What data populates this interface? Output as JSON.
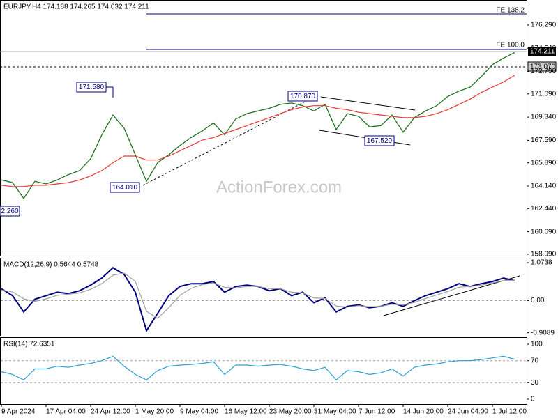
{
  "header": "EURJPY,H4  174.188 174.265 174.032 174.211",
  "watermark": "ActionForex.com",
  "annotations": [
    "171.580",
    "164.010",
    "2.260",
    "170.870",
    "167.520"
  ],
  "levels": {
    "fe_138": "FE 138.2",
    "fe_100": "FE 100.0",
    "current": "174.211",
    "support": "173.070"
  },
  "chart_data": [
    {
      "type": "line",
      "title": null,
      "categories": [
        "9 Apr 2024",
        null,
        null,
        null,
        "17 Apr 04:00",
        null,
        null,
        null,
        "24 Apr 12:00",
        null,
        null,
        null,
        "1 May 20:00",
        null,
        null,
        null,
        "9 May 04:00",
        null,
        null,
        null,
        "16 May 12:00",
        null,
        null,
        null,
        "23 May 20:00",
        null,
        null,
        null,
        "31 May 04:00",
        null,
        null,
        null,
        "7 Jun 12:00",
        null,
        null,
        null,
        "14 Jun 20:00",
        null,
        null,
        null,
        "24 Jun 04:00",
        null,
        null,
        null,
        "1 Jul 12:00",
        null,
        null
      ],
      "series": [
        {
          "name": "EURJPY",
          "color": "#1f6f1f",
          "values": [
            164.6,
            164.4,
            163.2,
            164.5,
            164.3,
            164.6,
            165.0,
            165.3,
            166.2,
            168.0,
            169.5,
            168.5,
            166.5,
            164.5,
            165.9,
            166.5,
            167.2,
            167.8,
            168.3,
            168.9,
            168.0,
            169.2,
            169.6,
            169.8,
            170.0,
            170.3,
            170.4,
            170.2,
            169.8,
            170.3,
            168.4,
            169.6,
            169.4,
            168.6,
            168.7,
            169.5,
            168.2,
            169.3,
            169.8,
            170.2,
            170.9,
            171.3,
            171.6,
            172.4,
            173.3,
            173.8,
            174.211
          ]
        },
        {
          "name": "MA",
          "color": "#e53935",
          "values": [
            164.2,
            164.1,
            164.1,
            164.2,
            164.2,
            164.3,
            164.4,
            164.6,
            164.9,
            165.3,
            165.9,
            166.4,
            166.4,
            166.1,
            166.1,
            166.4,
            166.8,
            167.2,
            167.6,
            167.8,
            168.1,
            168.4,
            168.7,
            169.0,
            169.3,
            169.6,
            169.9,
            170.1,
            170.2,
            170.2,
            170.0,
            169.9,
            169.7,
            169.6,
            169.5,
            169.4,
            169.3,
            169.3,
            169.4,
            169.6,
            169.9,
            170.3,
            170.7,
            171.2,
            171.6,
            172.0,
            172.5
          ]
        }
      ],
      "ylim": [
        158.83,
        178.125
      ],
      "yticks": [
        {
          "value": 176.29,
          "label": "176.290"
        },
        {
          "value": 174.54,
          "label": "174.540"
        },
        {
          "value": 172.79,
          "label": "172.790"
        },
        {
          "value": 171.09,
          "label": "171.090"
        },
        {
          "value": 169.34,
          "label": "169.340"
        },
        {
          "value": 167.59,
          "label": "167.590"
        },
        {
          "value": 165.89,
          "label": "165.890"
        },
        {
          "value": 164.14,
          "label": "164.140"
        },
        {
          "value": 162.44,
          "label": "162.440"
        },
        {
          "value": 160.69,
          "label": "160.690"
        },
        {
          "value": 158.99,
          "label": "158.990"
        }
      ]
    },
    {
      "type": "line",
      "title": "MACD(12,26,9) 0.5644 0.5748",
      "series": [
        {
          "name": "MACD",
          "color": "#000080",
          "values": [
            0.34,
            0.14,
            -0.32,
            0.04,
            0.14,
            0.24,
            0.2,
            0.28,
            0.44,
            0.64,
            0.93,
            0.74,
            0.24,
            -0.85,
            -0.36,
            0.14,
            0.4,
            0.48,
            0.48,
            0.54,
            0.24,
            0.4,
            0.44,
            0.4,
            0.28,
            0.34,
            0.14,
            0.24,
            -0.06,
            0.08,
            -0.32,
            -0.16,
            -0.12,
            -0.2,
            -0.16,
            -0.06,
            -0.16,
            0,
            0.14,
            0.24,
            0.34,
            0.48,
            0.4,
            0.48,
            0.54,
            0.64,
            0.5644
          ]
        },
        {
          "name": "Signal",
          "color": "#a0a0a0",
          "values": [
            0.3,
            0.25,
            0.05,
            -0.02,
            0.05,
            0.15,
            0.18,
            0.22,
            0.32,
            0.48,
            0.72,
            0.78,
            0.55,
            -0.3,
            -0.5,
            -0.2,
            0.15,
            0.35,
            0.45,
            0.5,
            0.38,
            0.36,
            0.4,
            0.4,
            0.34,
            0.34,
            0.24,
            0.22,
            0.08,
            0.06,
            -0.15,
            -0.18,
            -0.14,
            -0.17,
            -0.16,
            -0.1,
            -0.12,
            -0.05,
            0.06,
            0.16,
            0.26,
            0.38,
            0.4,
            0.44,
            0.5,
            0.57,
            0.5748
          ]
        }
      ],
      "ylim": [
        -0.994,
        1.193
      ],
      "yticks": [
        1.0738,
        {
          "value": 0,
          "label": "0.00"
        },
        -0.9089
      ],
      "reference_lines": [
        0
      ]
    },
    {
      "type": "line",
      "title": "RSI(14) 72.6351",
      "series": [
        {
          "name": "RSI",
          "color": "#2a9fd6",
          "values": [
            50,
            45,
            35,
            55,
            55,
            60,
            58,
            62,
            65,
            70,
            78,
            60,
            45,
            35,
            52,
            60,
            62,
            63,
            65,
            68,
            45,
            62,
            62,
            60,
            62,
            63,
            60,
            55,
            52,
            58,
            35,
            52,
            50,
            45,
            48,
            55,
            42,
            58,
            62,
            64,
            68,
            70,
            70,
            72,
            75,
            78,
            72.6351
          ]
        }
      ],
      "ylim": [
        -8.9,
        111.4
      ],
      "yticks": [
        100,
        70,
        30,
        0
      ],
      "reference_lines": [
        70,
        30
      ]
    }
  ]
}
